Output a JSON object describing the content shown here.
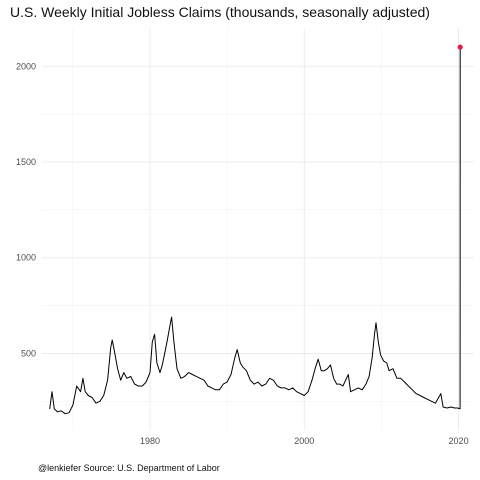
{
  "chart_data": {
    "type": "line",
    "title": "U.S. Weekly Initial Jobless Claims (thousands, seasonally adjusted)",
    "caption": "@lenkiefer Source: U.S. Department of Labor",
    "xlabel": "",
    "ylabel": "",
    "xlim": [
      1966,
      2022
    ],
    "ylim": [
      100,
      2200
    ],
    "x_ticks": [
      1980,
      2000,
      2020
    ],
    "x_tick_labels": [
      "1980",
      "2000",
      "2020"
    ],
    "y_ticks": [
      500,
      1000,
      1500,
      2000
    ],
    "y_tick_labels": [
      "500",
      "1000",
      "1500",
      "2000"
    ],
    "grid": true,
    "series": [
      {
        "color": "#000000",
        "points": [
          [
            1967.0,
            210
          ],
          [
            1967.3,
            300
          ],
          [
            1967.6,
            210
          ],
          [
            1968.0,
            195
          ],
          [
            1968.5,
            200
          ],
          [
            1969.0,
            185
          ],
          [
            1969.5,
            190
          ],
          [
            1970.0,
            230
          ],
          [
            1970.5,
            330
          ],
          [
            1971.0,
            300
          ],
          [
            1971.3,
            370
          ],
          [
            1971.6,
            300
          ],
          [
            1972.0,
            280
          ],
          [
            1972.5,
            270
          ],
          [
            1973.0,
            240
          ],
          [
            1973.5,
            250
          ],
          [
            1974.0,
            280
          ],
          [
            1974.5,
            360
          ],
          [
            1974.9,
            530
          ],
          [
            1975.1,
            570
          ],
          [
            1975.4,
            510
          ],
          [
            1975.8,
            420
          ],
          [
            1976.2,
            360
          ],
          [
            1976.6,
            400
          ],
          [
            1977.0,
            370
          ],
          [
            1977.5,
            380
          ],
          [
            1978.0,
            340
          ],
          [
            1978.5,
            330
          ],
          [
            1979.0,
            330
          ],
          [
            1979.5,
            350
          ],
          [
            1980.0,
            400
          ],
          [
            1980.3,
            560
          ],
          [
            1980.6,
            600
          ],
          [
            1980.9,
            450
          ],
          [
            1981.3,
            400
          ],
          [
            1981.6,
            440
          ],
          [
            1981.9,
            500
          ],
          [
            1982.2,
            560
          ],
          [
            1982.6,
            650
          ],
          [
            1982.8,
            690
          ],
          [
            1983.1,
            560
          ],
          [
            1983.5,
            420
          ],
          [
            1984.0,
            370
          ],
          [
            1984.5,
            380
          ],
          [
            1985.0,
            400
          ],
          [
            1985.5,
            390
          ],
          [
            1986.0,
            380
          ],
          [
            1986.5,
            370
          ],
          [
            1987.0,
            360
          ],
          [
            1987.5,
            330
          ],
          [
            1988.0,
            320
          ],
          [
            1988.5,
            310
          ],
          [
            1989.0,
            310
          ],
          [
            1989.5,
            340
          ],
          [
            1990.0,
            350
          ],
          [
            1990.5,
            390
          ],
          [
            1991.0,
            480
          ],
          [
            1991.3,
            520
          ],
          [
            1991.7,
            450
          ],
          [
            1992.0,
            430
          ],
          [
            1992.5,
            410
          ],
          [
            1993.0,
            360
          ],
          [
            1993.5,
            340
          ],
          [
            1994.0,
            350
          ],
          [
            1994.5,
            330
          ],
          [
            1995.0,
            340
          ],
          [
            1995.5,
            370
          ],
          [
            1996.0,
            360
          ],
          [
            1996.5,
            330
          ],
          [
            1997.0,
            320
          ],
          [
            1997.5,
            320
          ],
          [
            1998.0,
            310
          ],
          [
            1998.5,
            320
          ],
          [
            1999.0,
            300
          ],
          [
            1999.5,
            290
          ],
          [
            2000.0,
            280
          ],
          [
            2000.5,
            300
          ],
          [
            2001.0,
            360
          ],
          [
            2001.4,
            420
          ],
          [
            2001.8,
            470
          ],
          [
            2002.2,
            410
          ],
          [
            2002.6,
            410
          ],
          [
            2003.0,
            420
          ],
          [
            2003.4,
            440
          ],
          [
            2003.8,
            370
          ],
          [
            2004.2,
            340
          ],
          [
            2004.6,
            340
          ],
          [
            2005.0,
            330
          ],
          [
            2005.7,
            390
          ],
          [
            2006.0,
            300
          ],
          [
            2006.5,
            310
          ],
          [
            2007.0,
            320
          ],
          [
            2007.5,
            310
          ],
          [
            2008.0,
            340
          ],
          [
            2008.4,
            380
          ],
          [
            2008.8,
            480
          ],
          [
            2009.1,
            600
          ],
          [
            2009.3,
            660
          ],
          [
            2009.6,
            560
          ],
          [
            2009.9,
            490
          ],
          [
            2010.3,
            460
          ],
          [
            2010.7,
            450
          ],
          [
            2011.0,
            410
          ],
          [
            2011.5,
            420
          ],
          [
            2012.0,
            370
          ],
          [
            2012.5,
            370
          ],
          [
            2013.0,
            350
          ],
          [
            2013.5,
            330
          ],
          [
            2014.0,
            310
          ],
          [
            2014.5,
            290
          ],
          [
            2015.0,
            280
          ],
          [
            2015.5,
            270
          ],
          [
            2016.0,
            260
          ],
          [
            2016.5,
            250
          ],
          [
            2017.0,
            240
          ],
          [
            2017.7,
            290
          ],
          [
            2018.0,
            220
          ],
          [
            2018.5,
            215
          ],
          [
            2019.0,
            220
          ],
          [
            2019.5,
            215
          ],
          [
            2019.9,
            215
          ],
          [
            2020.1,
            212
          ],
          [
            2020.2,
            211
          ],
          [
            2020.21,
            2100
          ]
        ]
      }
    ],
    "highlight_point": {
      "x": 2020.21,
      "y": 2100,
      "color": "#e0224a"
    }
  }
}
